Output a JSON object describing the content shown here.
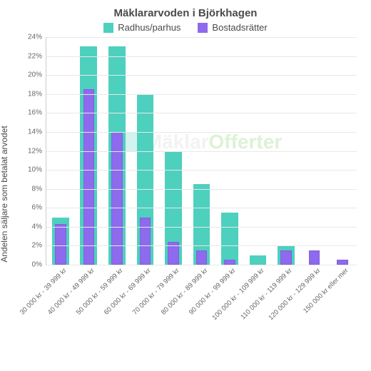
{
  "title": "Mäklararvoden i Björkhagen",
  "legend": [
    {
      "label": "Radhus/parhus",
      "color": "#4dd0be"
    },
    {
      "label": "Bostadsrätter",
      "color": "#8d6aee"
    }
  ],
  "y_axis": {
    "label": "Andelen säljare som betalat arvodet",
    "min": 0,
    "max": 24,
    "step": 2,
    "suffix": "%"
  },
  "series": {
    "radhus": {
      "color": "#4dd0be"
    },
    "bostad": {
      "color": "#8d6aee"
    }
  },
  "categories": [
    {
      "label": "30 000 kr - 39 999 kr",
      "radhus": 5.0,
      "bostad": 4.3
    },
    {
      "label": "40 000 kr - 49 999 kr",
      "radhus": 23.0,
      "bostad": 18.5
    },
    {
      "label": "50 000 kr - 59 999 kr",
      "radhus": 23.0,
      "bostad": 14.0
    },
    {
      "label": "60 000 kr - 69 999 kr",
      "radhus": 18.0,
      "bostad": 5.0
    },
    {
      "label": "70 000 kr - 79 999 kr",
      "radhus": 12.0,
      "bostad": 2.4
    },
    {
      "label": "80 000 kr - 89 999 kr",
      "radhus": 8.5,
      "bostad": 1.5
    },
    {
      "label": "90 000 kr - 99 999 kr",
      "radhus": 5.5,
      "bostad": 0.5
    },
    {
      "label": "100 000 kr - 109 999 kr",
      "radhus": 1.0,
      "bostad": 0.0
    },
    {
      "label": "110 000 kr - 119 999 kr",
      "radhus": 2.0,
      "bostad": 1.5
    },
    {
      "label": "120 000 kr - 129 999 kr",
      "radhus": 0.0,
      "bostad": 1.5
    },
    {
      "label": "150 000 kr eller mer",
      "radhus": 0.0,
      "bostad": 0.5
    }
  ],
  "watermark": {
    "text1": "Mäklar",
    "text2": "Offerter"
  },
  "style": {
    "background": "#ffffff",
    "grid_color": "#e8e8e8",
    "axis_color": "#cccccc",
    "text_color": "#4a4a4a",
    "tick_color": "#666666",
    "title_fontsize": 15,
    "legend_fontsize": 13,
    "tick_fontsize": 10,
    "xlabel_fontsize": 9.5
  }
}
